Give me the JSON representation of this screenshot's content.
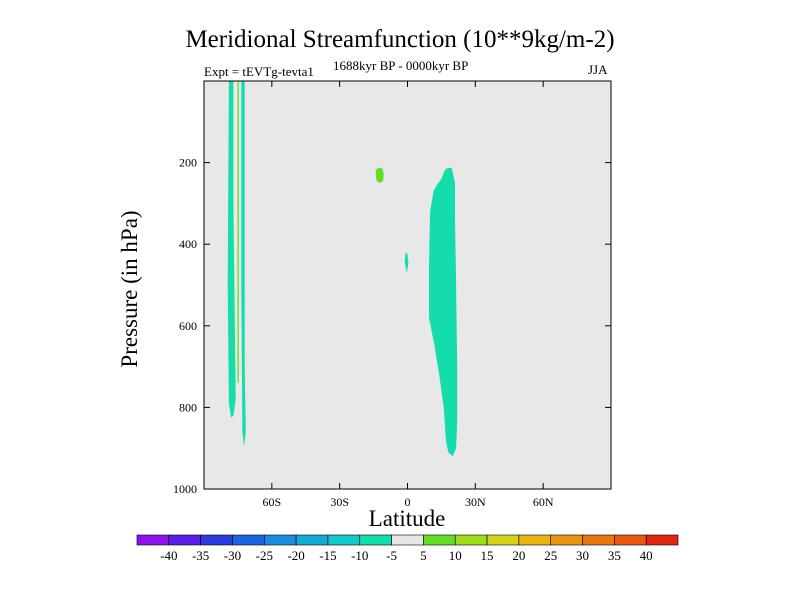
{
  "chart_data": {
    "type": "heatmap",
    "title": "Meridional Streamfunction (10**9kg/m-2)",
    "left_label": "Expt = tEVTg-tevta1",
    "center_label": "1688kyr BP - 0000kyr BP",
    "right_label": "JJA",
    "xlabel": "Latitude",
    "ylabel": "Pressure (in hPa)",
    "xlim": [
      -90,
      90
    ],
    "ylim": [
      0,
      1000
    ],
    "y_inverted": true,
    "x_ticks": [
      {
        "value": -60,
        "label": "60S"
      },
      {
        "value": -30,
        "label": "30S"
      },
      {
        "value": 0,
        "label": "0"
      },
      {
        "value": 30,
        "label": "30N"
      },
      {
        "value": 60,
        "label": "60N"
      }
    ],
    "y_ticks": [
      {
        "value": 200,
        "label": "200"
      },
      {
        "value": 400,
        "label": "400"
      },
      {
        "value": 600,
        "label": "600"
      },
      {
        "value": 800,
        "label": "800"
      },
      {
        "value": 1000,
        "label": "1000"
      }
    ],
    "background_color": "#e8e8e8",
    "colorbar": {
      "levels": [
        -40,
        -35,
        -30,
        -25,
        -20,
        -15,
        -10,
        -5,
        5,
        10,
        15,
        20,
        25,
        30,
        35,
        40
      ],
      "colors": [
        "#8c14e6",
        "#5a1ee6",
        "#2d3cdc",
        "#1e64dc",
        "#1e8cdc",
        "#14aad2",
        "#14c8c8",
        "#14dcaa",
        "#e6e6e6",
        "#64dc28",
        "#a0dc1e",
        "#d2d21e",
        "#e6b414",
        "#e69614",
        "#e67814",
        "#e65a14",
        "#dc2814"
      ]
    },
    "contours": [
      {
        "name": "sh-polar-band-a",
        "color": "#14dcaa",
        "points": [
          [
            -79,
            0
          ],
          [
            -77,
            0
          ],
          [
            -77,
            300
          ],
          [
            -76,
            780
          ],
          [
            -77,
            820
          ],
          [
            -78,
            825
          ],
          [
            -79,
            790
          ],
          [
            -79.5,
            500
          ],
          [
            -79,
            0
          ]
        ]
      },
      {
        "name": "sh-polar-band-b",
        "color": "#14dcaa",
        "points": [
          [
            -73.5,
            0
          ],
          [
            -72,
            0
          ],
          [
            -72,
            700
          ],
          [
            -71.5,
            860
          ],
          [
            -72.3,
            895
          ],
          [
            -73,
            860
          ],
          [
            -73.5,
            500
          ],
          [
            -73.5,
            0
          ]
        ]
      },
      {
        "name": "sh-polar-line-pos",
        "color": "#64dc28",
        "points": [
          [
            -75.2,
            0
          ],
          [
            -74.6,
            0
          ],
          [
            -74.6,
            740
          ],
          [
            -75.2,
            740
          ],
          [
            -75.2,
            0
          ]
        ]
      },
      {
        "name": "subtropical-blob-pos",
        "color": "#64dc28",
        "points": [
          [
            -14,
            218
          ],
          [
            -12.5,
            212
          ],
          [
            -11,
            215
          ],
          [
            -10.5,
            228
          ],
          [
            -10.8,
            245
          ],
          [
            -12.5,
            250
          ],
          [
            -13.8,
            243
          ],
          [
            -14,
            230
          ]
        ]
      },
      {
        "name": "equatorial-speck",
        "color": "#14dcaa",
        "points": [
          [
            -0.8,
            420
          ],
          [
            0,
            425
          ],
          [
            0.4,
            445
          ],
          [
            -0.2,
            470
          ],
          [
            -0.9,
            455
          ],
          [
            -1.3,
            440
          ]
        ]
      },
      {
        "name": "nh-tropical-cell",
        "color": "#14dcaa",
        "points": [
          [
            17,
            215
          ],
          [
            19.5,
            212
          ],
          [
            21,
            250
          ],
          [
            21,
            330
          ],
          [
            21.5,
            500
          ],
          [
            22,
            700
          ],
          [
            22,
            830
          ],
          [
            21.5,
            900
          ],
          [
            20,
            920
          ],
          [
            18,
            910
          ],
          [
            17,
            880
          ],
          [
            16,
            800
          ],
          [
            14,
            720
          ],
          [
            12,
            650
          ],
          [
            9.5,
            580
          ],
          [
            9.5,
            450
          ],
          [
            10,
            320
          ],
          [
            11.5,
            270
          ],
          [
            13,
            255
          ],
          [
            15,
            240
          ],
          [
            16,
            225
          ]
        ]
      }
    ]
  }
}
